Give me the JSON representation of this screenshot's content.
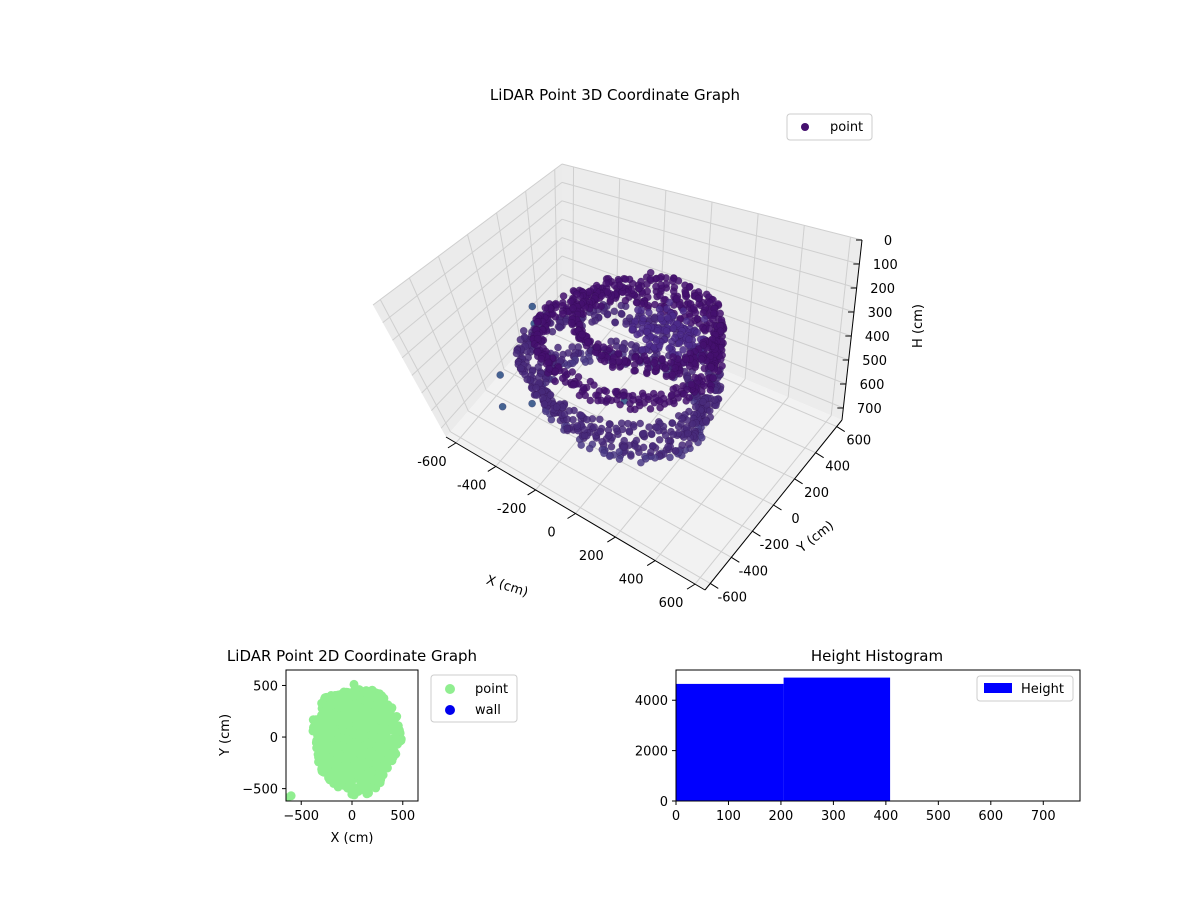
{
  "chart_data": [
    {
      "type": "scatter3d",
      "title": "LiDAR Point 3D Coordinate Graph",
      "xlabel": "X (cm)",
      "ylabel": "Y (cm)",
      "zlabel": "H (cm)",
      "xlim": [
        -650,
        650
      ],
      "ylim": [
        -650,
        650
      ],
      "zlim": [
        0,
        750
      ],
      "z_inverted": true,
      "x_ticks": [
        "-600",
        "-400",
        "-200",
        "0",
        "200",
        "400",
        "600"
      ],
      "y_ticks": [
        "-600",
        "-400",
        "-200",
        "0",
        "200",
        "400",
        "600"
      ],
      "z_ticks": [
        "0",
        "100",
        "200",
        "300",
        "400",
        "500",
        "600",
        "700"
      ],
      "grid": true,
      "legend": {
        "position": "top-right",
        "entries": [
          {
            "label": "point",
            "color": "#44106e"
          }
        ]
      },
      "series": [
        {
          "name": "point",
          "rings": [
            {
              "h": 180,
              "rx": 300,
              "ry": 280,
              "cx": 80,
              "cy": 40
            },
            {
              "h": 300,
              "rx": 380,
              "ry": 360,
              "cx": 0,
              "cy": 0
            },
            {
              "h": 430,
              "rx": 420,
              "ry": 400,
              "cx": -40,
              "cy": -20
            },
            {
              "h": 540,
              "rx": 360,
              "ry": 340,
              "cx": -20,
              "cy": -60
            }
          ],
          "outliers": [
            {
              "x": -620,
              "y": 300,
              "h": 560
            },
            {
              "x": -600,
              "y": 260,
              "h": 620
            },
            {
              "x": -560,
              "y": 180,
              "h": 700
            },
            {
              "x": -640,
              "y": -60,
              "h": 740
            },
            {
              "x": -450,
              "y": -140,
              "h": 740
            },
            {
              "x": -540,
              "y": -260,
              "h": 740
            },
            {
              "x": -120,
              "y": 120,
              "h": 700
            }
          ]
        }
      ]
    },
    {
      "type": "scatter",
      "title": "LiDAR Point 2D Coordinate Graph",
      "xlabel": "X (cm)",
      "ylabel": "Y (cm)",
      "xlim": [
        -650,
        650
      ],
      "ylim": [
        -620,
        650
      ],
      "x_ticks": [
        -500,
        0,
        500
      ],
      "y_ticks": [
        -500,
        0,
        500
      ],
      "legend": {
        "position": "outside-right",
        "entries": [
          {
            "label": "point",
            "color": "#90ee90"
          },
          {
            "label": "wall",
            "color": "#0000ee"
          }
        ]
      },
      "series": [
        {
          "name": "point",
          "color": "#90ee90",
          "shape": "blob",
          "center": [
            40,
            -20
          ],
          "radius_x": 430,
          "radius_y": 520
        },
        {
          "name": "wall",
          "color": "#0000ee",
          "points": []
        }
      ]
    },
    {
      "type": "bar",
      "title": "Height Histogram",
      "xlim": [
        0,
        770
      ],
      "ylim": [
        0,
        5200
      ],
      "x_ticks": [
        0,
        100,
        200,
        300,
        400,
        500,
        600,
        700
      ],
      "y_ticks": [
        0,
        2000,
        4000
      ],
      "legend": {
        "position": "top-right",
        "entries": [
          {
            "label": "Height",
            "color": "#0000ff"
          }
        ]
      },
      "series": [
        {
          "name": "Height",
          "color": "#0000ff",
          "bins": [
            {
              "x0": 0,
              "x1": 205,
              "count": 4650
            },
            {
              "x0": 205,
              "x1": 408,
              "count": 4900
            },
            {
              "x0": 408,
              "x1": 610,
              "count": 0
            },
            {
              "x0": 610,
              "x1": 770,
              "count": 0
            }
          ]
        }
      ]
    }
  ]
}
